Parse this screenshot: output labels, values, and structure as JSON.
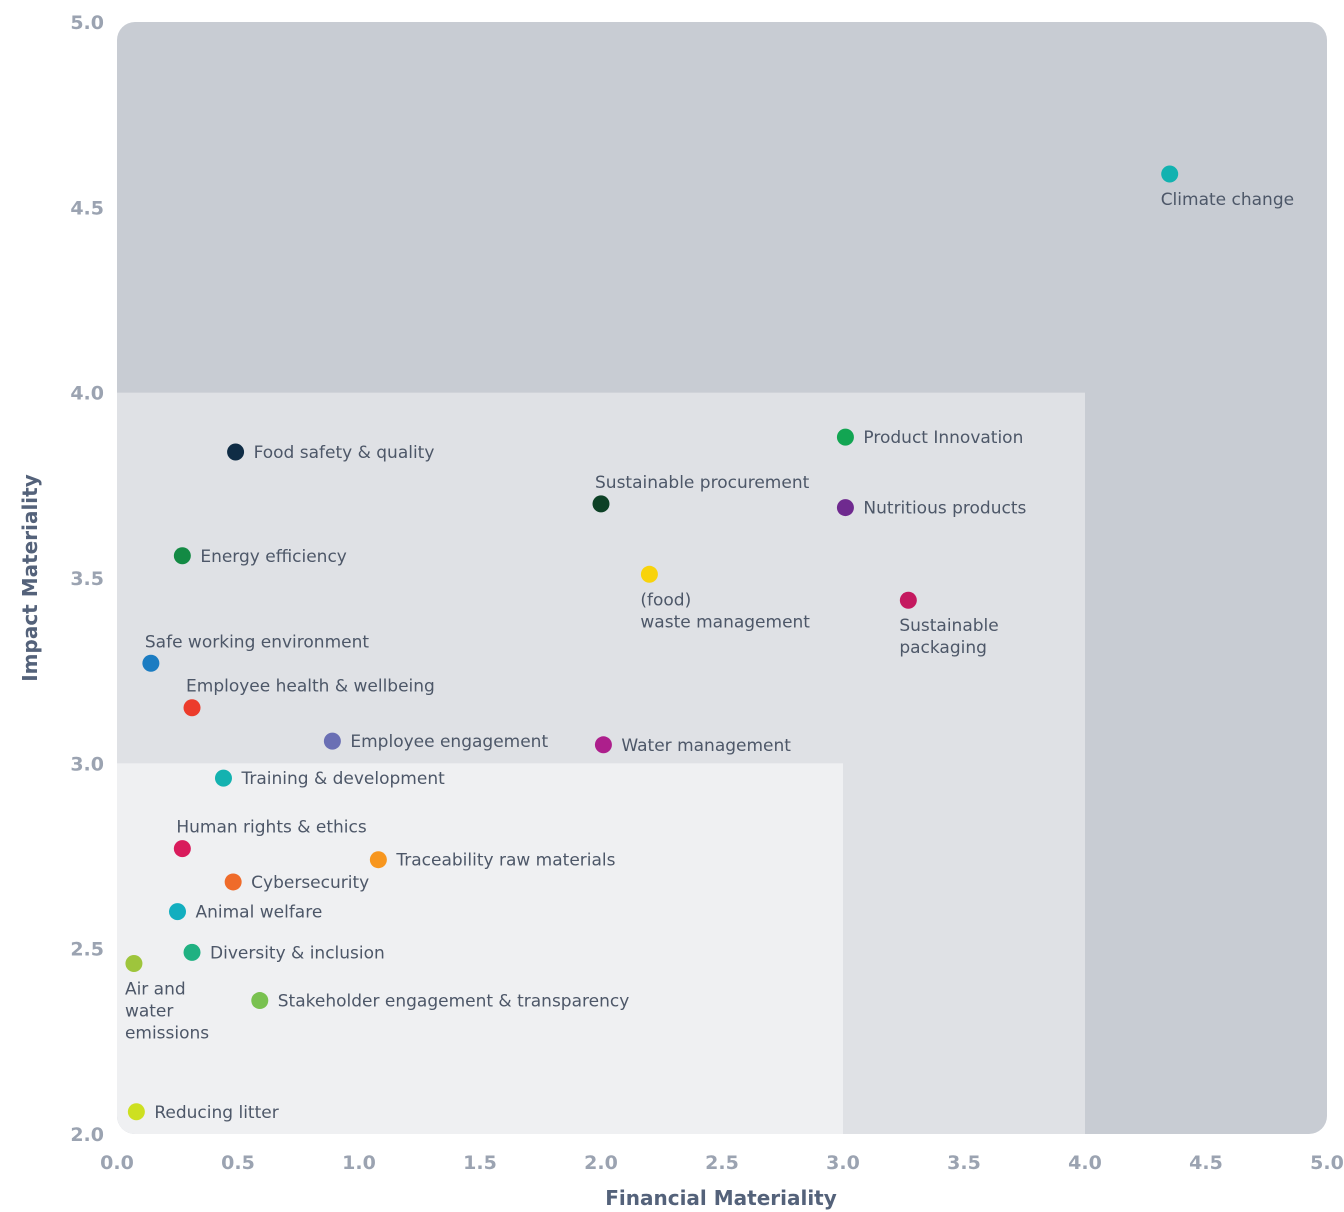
{
  "chart_data": {
    "type": "scatter",
    "xlabel": "Financial Materiality",
    "ylabel": "Impact Materiality",
    "xlim": [
      0,
      5
    ],
    "ylim": [
      2,
      5
    ],
    "x_ticks": [
      "0.0",
      "0.5",
      "1.0",
      "1.5",
      "2.0",
      "2.5",
      "3.0",
      "3.5",
      "4.0",
      "4.5",
      "5.0"
    ],
    "y_ticks": [
      "2.0",
      "2.5",
      "3.0",
      "3.5",
      "4.0",
      "4.5",
      "5.0"
    ],
    "zones": [
      {
        "x_max": 5.0,
        "y_max": 5.0,
        "color": "#c8ccd3"
      },
      {
        "x_max": 4.0,
        "y_max": 4.0,
        "color": "#dfe1e5"
      },
      {
        "x_max": 3.0,
        "y_max": 3.0,
        "color": "#eff0f2"
      }
    ],
    "points": [
      {
        "label": "Climate change",
        "x": 4.35,
        "y": 4.59,
        "color": "#12b2b0",
        "label_pos": "below"
      },
      {
        "label": "Food safety & quality",
        "x": 0.49,
        "y": 3.84,
        "color": "#0f2c45",
        "label_pos": "right"
      },
      {
        "label": "Product Innovation",
        "x": 3.01,
        "y": 3.88,
        "color": "#12a552",
        "label_pos": "right"
      },
      {
        "label": "Sustainable procurement",
        "x": 2.0,
        "y": 3.7,
        "color": "#0d4126",
        "label_pos": "above"
      },
      {
        "label": "Nutritious products",
        "x": 3.01,
        "y": 3.69,
        "color": "#6f2a8f",
        "label_pos": "right"
      },
      {
        "label": "Energy efficiency",
        "x": 0.27,
        "y": 3.56,
        "color": "#138a44",
        "label_pos": "right"
      },
      {
        "label": "(food)\nwaste management",
        "x": 2.2,
        "y": 3.51,
        "color": "#f8d30c",
        "label_pos": "below"
      },
      {
        "label": "Sustainable\npackaging",
        "x": 3.27,
        "y": 3.44,
        "color": "#c4195f",
        "label_pos": "below"
      },
      {
        "label": "Safe working environment",
        "x": 0.14,
        "y": 3.27,
        "color": "#1b7cc2",
        "label_pos": "above"
      },
      {
        "label": "Employee health & wellbeing",
        "x": 0.31,
        "y": 3.15,
        "color": "#ec3b2b",
        "label_pos": "above"
      },
      {
        "label": "Employee engagement",
        "x": 0.89,
        "y": 3.06,
        "color": "#6a6fb4",
        "label_pos": "right"
      },
      {
        "label": "Water management",
        "x": 2.01,
        "y": 3.05,
        "color": "#ad1f8c",
        "label_pos": "right"
      },
      {
        "label": "Training & development",
        "x": 0.44,
        "y": 2.96,
        "color": "#14b2b0",
        "label_pos": "right"
      },
      {
        "label": "Human rights & ethics",
        "x": 0.27,
        "y": 2.77,
        "color": "#d91b5c",
        "label_pos": "above"
      },
      {
        "label": "Traceability raw materials",
        "x": 1.08,
        "y": 2.74,
        "color": "#f7961e",
        "label_pos": "right"
      },
      {
        "label": "Cybersecurity",
        "x": 0.48,
        "y": 2.68,
        "color": "#ef6b2a",
        "label_pos": "right"
      },
      {
        "label": "Animal welfare",
        "x": 0.25,
        "y": 2.6,
        "color": "#12aebf",
        "label_pos": "right"
      },
      {
        "label": "Diversity & inclusion",
        "x": 0.31,
        "y": 2.49,
        "color": "#20b182",
        "label_pos": "right"
      },
      {
        "label": "Air and\nwater\nemissions",
        "x": 0.07,
        "y": 2.46,
        "color": "#9ec53c",
        "label_pos": "below"
      },
      {
        "label": "Stakeholder engagement & transparency",
        "x": 0.59,
        "y": 2.36,
        "color": "#79c150",
        "label_pos": "right"
      },
      {
        "label": "Reducing litter",
        "x": 0.08,
        "y": 2.06,
        "color": "#cde021",
        "label_pos": "right"
      }
    ]
  }
}
